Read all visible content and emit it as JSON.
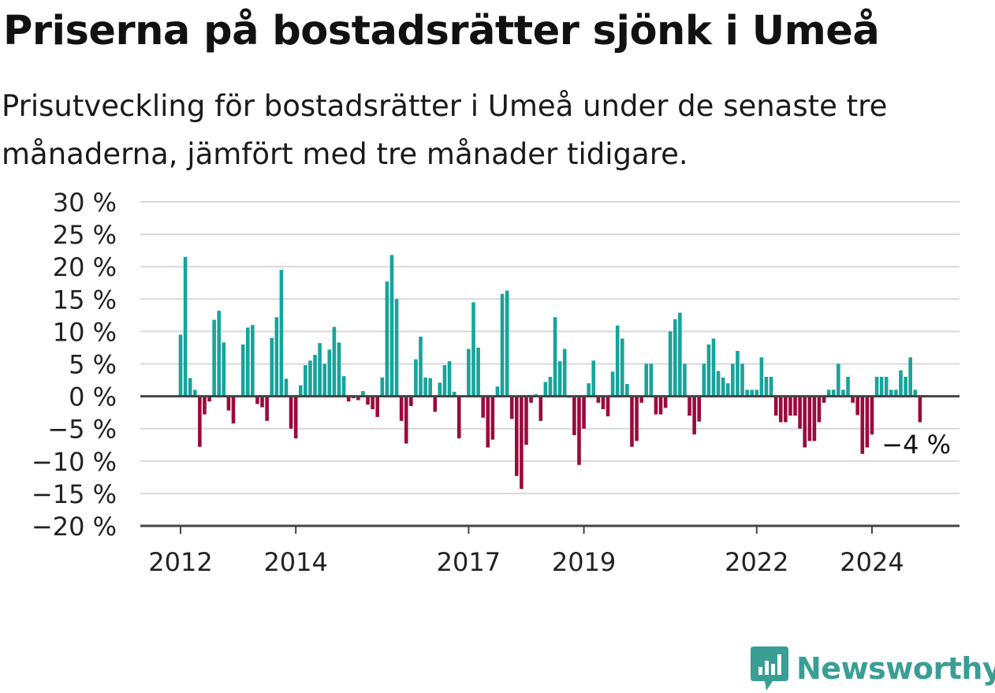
{
  "title": "Priserna på bostadsrätter sjönk i Umeå",
  "subtitle": "Prisutveckling för bostadsrätter i Umeå under de senaste tre månaderna, jämfört med tre månader tidigare.",
  "brand": "Newsworthy",
  "colors": {
    "positive": "#16a49b",
    "negative": "#9b0a3d",
    "grid": "#d9d9d9",
    "axis": "#444444",
    "brand": "#3a9e95"
  },
  "chart_data": {
    "type": "bar",
    "title": "",
    "xlabel": "",
    "ylabel": "",
    "unit": "%",
    "ylim": [
      -20,
      30
    ],
    "yticks": [
      30,
      25,
      20,
      15,
      10,
      5,
      0,
      -5,
      -10,
      -15,
      -20
    ],
    "ytick_labels": [
      "30 %",
      "25 %",
      "20 %",
      "15 %",
      "10 %",
      "5 %",
      "0 %",
      "−5 %",
      "−10 %",
      "−15 %",
      "−20 %"
    ],
    "xticks": [
      {
        "label": "2012",
        "index": 0
      },
      {
        "label": "2014",
        "index": 24
      },
      {
        "label": "2017",
        "index": 60
      },
      {
        "label": "2019",
        "index": 84
      },
      {
        "label": "2022",
        "index": 120
      },
      {
        "label": "2024",
        "index": 144
      }
    ],
    "grid": true,
    "annotation": "−4 %",
    "values": [
      9.5,
      21.5,
      2.8,
      1.0,
      -7.8,
      -2.8,
      -0.8,
      11.8,
      13.2,
      8.3,
      -2.2,
      -4.2,
      0,
      8.0,
      10.6,
      11.0,
      -1.2,
      -1.7,
      -3.8,
      9.0,
      12.2,
      19.5,
      2.7,
      -5.0,
      -6.5,
      1.7,
      4.8,
      5.5,
      6.4,
      8.2,
      5.0,
      7.2,
      10.7,
      8.3,
      3.1,
      -0.8,
      -0.3,
      -0.6,
      0.8,
      -1.3,
      -2.0,
      -3.2,
      2.9,
      17.7,
      21.8,
      15.0,
      -3.8,
      -7.3,
      -1.5,
      5.7,
      9.2,
      2.9,
      2.8,
      -2.4,
      2.1,
      4.8,
      5.4,
      0.7,
      -6.5,
      0,
      7.3,
      14.5,
      7.5,
      -3.3,
      -7.9,
      -6.7,
      1.5,
      15.8,
      16.3,
      -3.5,
      -12.3,
      -14.3,
      -7.5,
      -1.0,
      0.3,
      -3.8,
      2.2,
      3.0,
      12.2,
      5.4,
      7.3,
      -0.2,
      -6.0,
      -10.6,
      -5.0,
      2.0,
      5.5,
      -1.0,
      -2.0,
      -3.1,
      3.8,
      10.9,
      8.9,
      1.9,
      -7.8,
      -6.9,
      -1.0,
      5.0,
      5.0,
      -2.8,
      -2.8,
      -1.8,
      10.0,
      11.9,
      12.9,
      5.0,
      -3.0,
      -5.9,
      -3.9,
      5.0,
      8.0,
      8.9,
      3.9,
      2.9,
      2.0,
      5.0,
      7.0,
      5.0,
      1.0,
      1.0,
      1.0,
      6.0,
      3.0,
      3.0,
      -3.0,
      -4.0,
      -4.0,
      -3.0,
      -3.0,
      -5.0,
      -7.9,
      -6.9,
      -6.9,
      -4.0,
      -1.0,
      1.0,
      1.0,
      5.0,
      1.0,
      3.0,
      -1.0,
      -2.9,
      -8.9,
      -7.9,
      -5.9,
      3.0,
      3.0,
      3.0,
      1.0,
      1.0,
      4.0,
      3.0,
      6.0,
      1.0,
      -4.0
    ]
  }
}
